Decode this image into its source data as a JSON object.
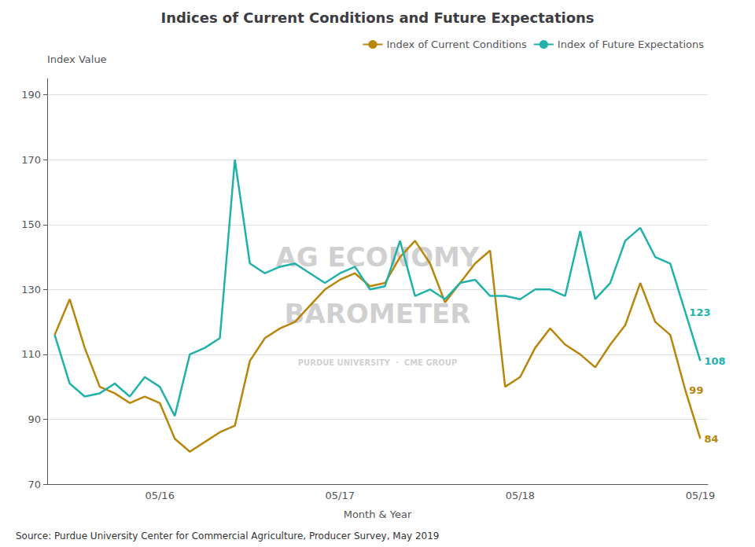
{
  "chart_data": {
    "type": "line",
    "title": "Indices of Current Conditions and Future Expectations",
    "xlabel": "Month & Year",
    "ylabel": "Index Value",
    "source": "Source: Purdue University Center for Commercial Agriculture, Producer Survey, May 2019",
    "watermark": [
      "AG ECONOMY",
      "BAROMETER",
      "PURDUE UNIVERSITY  ·  CME GROUP"
    ],
    "categories": [
      null,
      null,
      null,
      null,
      null,
      null,
      null,
      "05/16",
      null,
      null,
      null,
      null,
      null,
      null,
      null,
      null,
      null,
      null,
      null,
      "05/17",
      null,
      null,
      null,
      null,
      null,
      null,
      null,
      null,
      null,
      null,
      null,
      "05/18",
      null,
      null,
      null,
      null,
      null,
      null,
      null,
      null,
      null,
      null,
      null,
      "05/19"
    ],
    "series": [
      {
        "name": "Index of Current Conditions",
        "color": "#B8860B",
        "values": [
          116,
          127,
          112,
          100,
          98,
          95,
          97,
          95,
          84,
          80,
          83,
          86,
          88,
          108,
          115,
          118,
          120,
          125,
          130,
          133,
          135,
          131,
          132,
          140,
          145,
          138,
          126,
          132,
          138,
          142,
          100,
          103,
          112,
          118,
          113,
          110,
          106,
          113,
          119,
          132,
          120,
          116,
          99,
          84
        ],
        "value_labels": [
          null,
          null,
          null,
          null,
          null,
          null,
          null,
          null,
          null,
          null,
          null,
          null,
          null,
          null,
          null,
          null,
          null,
          null,
          null,
          null,
          null,
          null,
          null,
          null,
          null,
          null,
          null,
          null,
          null,
          null,
          null,
          null,
          null,
          null,
          null,
          null,
          null,
          null,
          null,
          null,
          null,
          null,
          "99",
          "84"
        ]
      },
      {
        "name": "Index of Future Expectations",
        "color": "#20B2AA",
        "values": [
          116,
          101,
          97,
          98,
          101,
          97,
          103,
          100,
          91,
          110,
          112,
          115,
          170,
          138,
          135,
          137,
          138,
          135,
          132,
          135,
          137,
          130,
          131,
          145,
          128,
          130,
          127,
          132,
          133,
          128,
          128,
          127,
          130,
          130,
          128,
          148,
          127,
          132,
          145,
          149,
          140,
          138,
          123,
          108
        ],
        "value_labels": [
          null,
          null,
          null,
          null,
          null,
          null,
          null,
          null,
          null,
          null,
          null,
          null,
          null,
          null,
          null,
          null,
          null,
          null,
          null,
          null,
          null,
          null,
          null,
          null,
          null,
          null,
          null,
          null,
          null,
          null,
          null,
          null,
          null,
          null,
          null,
          null,
          null,
          null,
          null,
          null,
          null,
          null,
          "123",
          "108"
        ]
      }
    ],
    "ylim": [
      70,
      195
    ],
    "yticks": [
      70,
      90,
      110,
      130,
      150,
      170,
      190
    ],
    "grid": true,
    "legend": "upper right"
  }
}
